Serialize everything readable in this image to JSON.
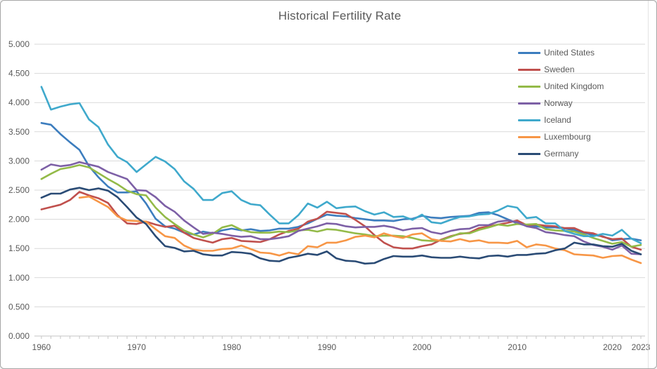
{
  "theme": {
    "background": "#FFFFFF",
    "frame_border_color": "#A6A6A6",
    "grid_color": "#D9D9D9",
    "axis_line_color": "#C6C6C6",
    "tick_color": "#C6C6C6",
    "axis_text_color": "#595959",
    "title_color": "#595959"
  },
  "chart_data": {
    "type": "line",
    "title": "Historical Fertility Rate",
    "xlabel": "",
    "ylabel": "",
    "ylim": [
      0,
      5
    ],
    "y_tick_step": 0.5,
    "y_tick_decimals": 3,
    "grid": "horizontal-only",
    "legend_position": "top-right-inside",
    "years": [
      1960,
      1961,
      1962,
      1963,
      1964,
      1965,
      1966,
      1967,
      1968,
      1969,
      1970,
      1971,
      1972,
      1973,
      1974,
      1975,
      1976,
      1977,
      1978,
      1979,
      1980,
      1981,
      1982,
      1983,
      1984,
      1985,
      1986,
      1987,
      1988,
      1989,
      1990,
      1991,
      1992,
      1993,
      1994,
      1995,
      1996,
      1997,
      1998,
      1999,
      2000,
      2001,
      2002,
      2003,
      2004,
      2005,
      2006,
      2007,
      2008,
      2009,
      2010,
      2011,
      2012,
      2013,
      2014,
      2015,
      2016,
      2017,
      2018,
      2019,
      2020,
      2021,
      2022,
      2023
    ],
    "x_tick_years": [
      1960,
      1970,
      1980,
      1990,
      2000,
      2010,
      2020,
      2023
    ],
    "series": [
      {
        "name": "United States",
        "color": "#3C7DBE",
        "values": [
          3.65,
          3.62,
          3.46,
          3.32,
          3.19,
          2.91,
          2.72,
          2.56,
          2.46,
          2.46,
          2.48,
          2.27,
          2.01,
          1.88,
          1.84,
          1.77,
          1.74,
          1.79,
          1.76,
          1.81,
          1.84,
          1.81,
          1.83,
          1.8,
          1.81,
          1.84,
          1.84,
          1.87,
          1.93,
          2.01,
          2.08,
          2.06,
          2.05,
          2.02,
          2.0,
          1.98,
          1.98,
          1.97,
          2.0,
          2.01,
          2.06,
          2.03,
          2.02,
          2.04,
          2.05,
          2.06,
          2.11,
          2.12,
          2.07,
          2.0,
          1.93,
          1.89,
          1.88,
          1.86,
          1.86,
          1.84,
          1.82,
          1.77,
          1.73,
          1.71,
          1.64,
          1.66,
          1.67,
          1.64
        ]
      },
      {
        "name": "Sweden",
        "color": "#C0504D",
        "values": [
          2.17,
          2.21,
          2.25,
          2.33,
          2.47,
          2.41,
          2.36,
          2.28,
          2.07,
          1.93,
          1.92,
          1.96,
          1.91,
          1.87,
          1.89,
          1.77,
          1.68,
          1.64,
          1.6,
          1.66,
          1.68,
          1.63,
          1.62,
          1.61,
          1.66,
          1.74,
          1.8,
          1.84,
          1.96,
          2.01,
          2.13,
          2.11,
          2.09,
          1.99,
          1.88,
          1.73,
          1.6,
          1.52,
          1.5,
          1.5,
          1.54,
          1.57,
          1.65,
          1.71,
          1.75,
          1.77,
          1.85,
          1.88,
          1.91,
          1.94,
          1.98,
          1.9,
          1.91,
          1.89,
          1.88,
          1.85,
          1.85,
          1.78,
          1.76,
          1.7,
          1.66,
          1.67,
          1.53,
          1.48
        ]
      },
      {
        "name": "United Kingdom",
        "color": "#93BA48",
        "values": [
          2.69,
          2.78,
          2.86,
          2.89,
          2.93,
          2.89,
          2.79,
          2.69,
          2.6,
          2.49,
          2.43,
          2.41,
          2.2,
          2.04,
          1.92,
          1.81,
          1.74,
          1.69,
          1.75,
          1.86,
          1.9,
          1.82,
          1.78,
          1.77,
          1.77,
          1.79,
          1.78,
          1.81,
          1.82,
          1.79,
          1.83,
          1.82,
          1.79,
          1.76,
          1.74,
          1.71,
          1.72,
          1.72,
          1.71,
          1.68,
          1.64,
          1.63,
          1.64,
          1.7,
          1.76,
          1.76,
          1.82,
          1.86,
          1.91,
          1.89,
          1.92,
          1.91,
          1.92,
          1.83,
          1.81,
          1.8,
          1.79,
          1.74,
          1.68,
          1.63,
          1.58,
          1.61,
          1.53,
          1.56
        ]
      },
      {
        "name": "Norway",
        "color": "#7D60A6",
        "values": [
          2.85,
          2.94,
          2.91,
          2.93,
          2.98,
          2.94,
          2.9,
          2.81,
          2.75,
          2.69,
          2.5,
          2.49,
          2.38,
          2.23,
          2.13,
          1.98,
          1.86,
          1.75,
          1.77,
          1.75,
          1.72,
          1.7,
          1.71,
          1.66,
          1.66,
          1.68,
          1.71,
          1.8,
          1.84,
          1.88,
          1.93,
          1.92,
          1.88,
          1.86,
          1.87,
          1.87,
          1.89,
          1.86,
          1.81,
          1.84,
          1.85,
          1.78,
          1.75,
          1.8,
          1.83,
          1.84,
          1.9,
          1.9,
          1.96,
          1.98,
          1.95,
          1.88,
          1.85,
          1.78,
          1.76,
          1.73,
          1.71,
          1.62,
          1.56,
          1.53,
          1.48,
          1.55,
          1.41,
          1.4
        ]
      },
      {
        "name": "Iceland",
        "color": "#3FA9CC",
        "values": [
          4.27,
          3.88,
          3.93,
          3.97,
          3.99,
          3.71,
          3.58,
          3.28,
          3.07,
          2.98,
          2.81,
          2.94,
          3.07,
          2.99,
          2.86,
          2.65,
          2.52,
          2.33,
          2.33,
          2.45,
          2.48,
          2.33,
          2.26,
          2.24,
          2.08,
          1.93,
          1.93,
          2.07,
          2.27,
          2.2,
          2.3,
          2.19,
          2.21,
          2.22,
          2.14,
          2.08,
          2.12,
          2.04,
          2.05,
          1.99,
          2.08,
          1.95,
          1.93,
          1.99,
          2.04,
          2.05,
          2.08,
          2.09,
          2.15,
          2.23,
          2.2,
          2.02,
          2.04,
          1.93,
          1.93,
          1.8,
          1.75,
          1.71,
          1.71,
          1.75,
          1.72,
          1.82,
          1.67,
          1.59
        ]
      },
      {
        "name": "Luxembourg",
        "color": "#F79646",
        "values": [
          null,
          null,
          null,
          null,
          2.37,
          2.39,
          2.3,
          2.21,
          2.05,
          1.98,
          1.97,
          1.96,
          1.83,
          1.71,
          1.68,
          1.55,
          1.48,
          1.46,
          1.46,
          1.49,
          1.5,
          1.55,
          1.49,
          1.43,
          1.42,
          1.38,
          1.43,
          1.4,
          1.54,
          1.52,
          1.6,
          1.6,
          1.64,
          1.7,
          1.72,
          1.69,
          1.76,
          1.71,
          1.68,
          1.74,
          1.76,
          1.66,
          1.63,
          1.62,
          1.66,
          1.62,
          1.64,
          1.6,
          1.6,
          1.59,
          1.63,
          1.52,
          1.57,
          1.55,
          1.5,
          1.47,
          1.4,
          1.39,
          1.38,
          1.34,
          1.37,
          1.38,
          1.31,
          1.25
        ]
      },
      {
        "name": "Germany",
        "color": "#2A4B75",
        "values": [
          2.37,
          2.44,
          2.44,
          2.51,
          2.54,
          2.5,
          2.53,
          2.49,
          2.38,
          2.21,
          2.03,
          1.92,
          1.71,
          1.54,
          1.51,
          1.45,
          1.46,
          1.4,
          1.38,
          1.38,
          1.44,
          1.43,
          1.41,
          1.33,
          1.29,
          1.28,
          1.34,
          1.37,
          1.41,
          1.39,
          1.45,
          1.33,
          1.29,
          1.28,
          1.24,
          1.25,
          1.32,
          1.37,
          1.36,
          1.36,
          1.38,
          1.35,
          1.34,
          1.34,
          1.36,
          1.34,
          1.33,
          1.37,
          1.38,
          1.36,
          1.39,
          1.39,
          1.41,
          1.42,
          1.47,
          1.5,
          1.6,
          1.57,
          1.57,
          1.54,
          1.53,
          1.58,
          1.46,
          1.4
        ]
      }
    ]
  }
}
